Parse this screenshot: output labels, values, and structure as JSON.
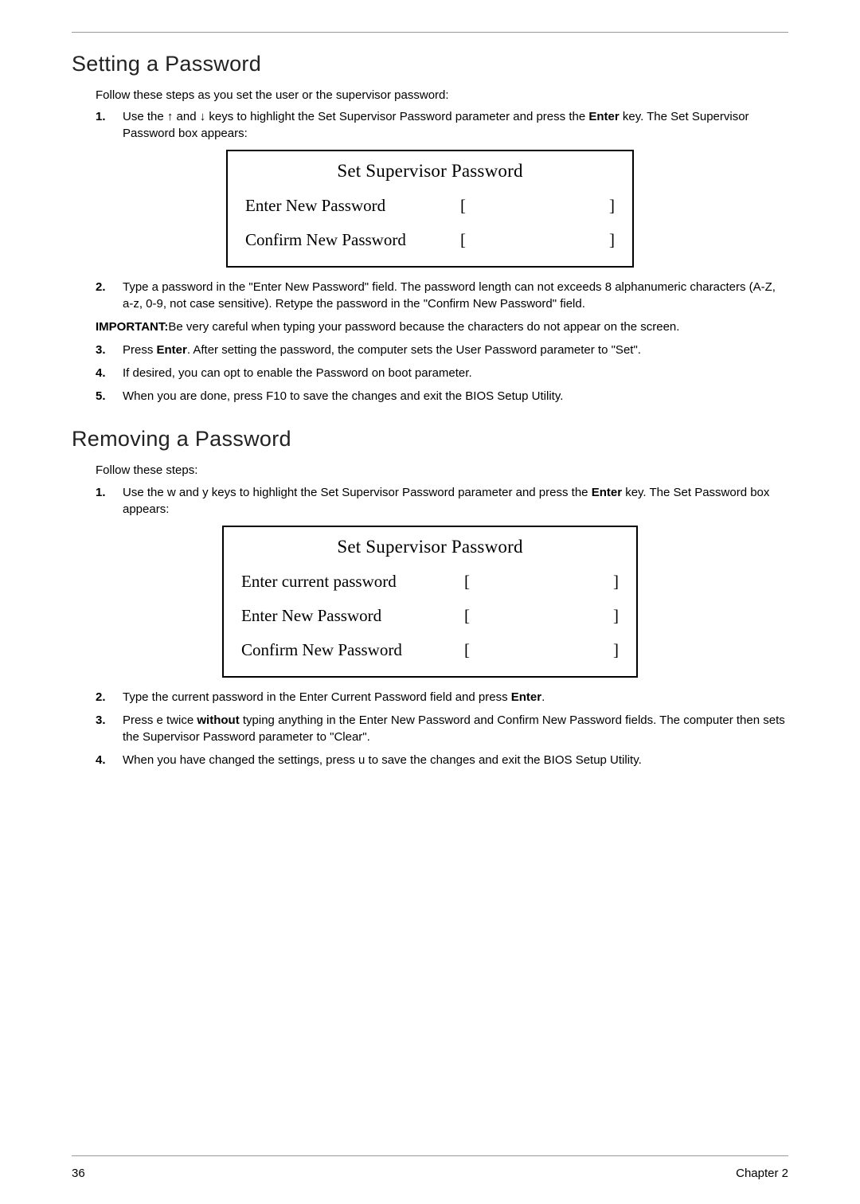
{
  "colors": {
    "text": "#000000",
    "rule": "#999999",
    "bg": "#ffffff"
  },
  "section1": {
    "heading": "Setting a Password",
    "intro": "Follow these steps as you set the user or the supervisor password:",
    "steps": {
      "s1_pre": "Use the ",
      "arrow_up": "↑",
      "s1_mid": " and ",
      "arrow_down": "↓",
      "s1_post": " keys to highlight the Set Supervisor Password parameter and press the ",
      "s1_enter": "Enter",
      "s1_tail": " key. The Set Supervisor Password box appears:",
      "s2": "Type a password in the \"Enter New Password\" field. The password length can not exceeds 8 alphanumeric characters (A-Z, a-z, 0-9, not case sensitive). Retype the password in the \"Confirm New Password\" field.",
      "s3_pre": "Press ",
      "s3_enter": "Enter",
      "s3_post": ". After setting the password, the computer sets the User Password parameter to \"Set\".",
      "s4": "If desired, you can opt to enable the Password on boot parameter.",
      "s5": "When you are done, press F10 to save the changes and exit the BIOS Setup Utility."
    },
    "important_label": "IMPORTANT:",
    "important_text": "Be very careful when typing your password because the characters do not appear on the screen.",
    "dialog": {
      "title": "Set Supervisor Password",
      "row1": "Enter New Password",
      "row2": "Confirm New Password",
      "lb": "[",
      "rb": "]"
    }
  },
  "section2": {
    "heading": "Removing a Password",
    "intro": "Follow these steps:",
    "steps": {
      "s1_pre": "Use the ",
      "key_w": "w",
      "s1_mid": " and ",
      "key_y": "y",
      "s1_post": " keys to highlight the Set Supervisor Password parameter and press the ",
      "s1_enter": "Enter",
      "s1_tail": " key. The Set Password box appears:",
      "s2_pre": "Type the current password in the Enter Current Password field and press ",
      "s2_enter": "Enter",
      "s2_post": ".",
      "s3_pre": "Press ",
      "key_e": "e",
      "s3_mid": " twice ",
      "s3_without": "without",
      "s3_post": " typing anything in the Enter New Password and Confirm New Password fields. The computer then sets the Supervisor Password parameter to \"Clear\".",
      "s4_pre": "When you have changed the settings, press ",
      "key_u": "u",
      "s4_post": " to save the changes and exit the BIOS Setup Utility."
    },
    "dialog": {
      "title": "Set Supervisor Password",
      "row1": "Enter current password",
      "row2": "Enter New Password",
      "row3": "Confirm New Password",
      "lb": "[",
      "rb": "]"
    }
  },
  "footer": {
    "page": "36",
    "chapter": "Chapter 2"
  }
}
